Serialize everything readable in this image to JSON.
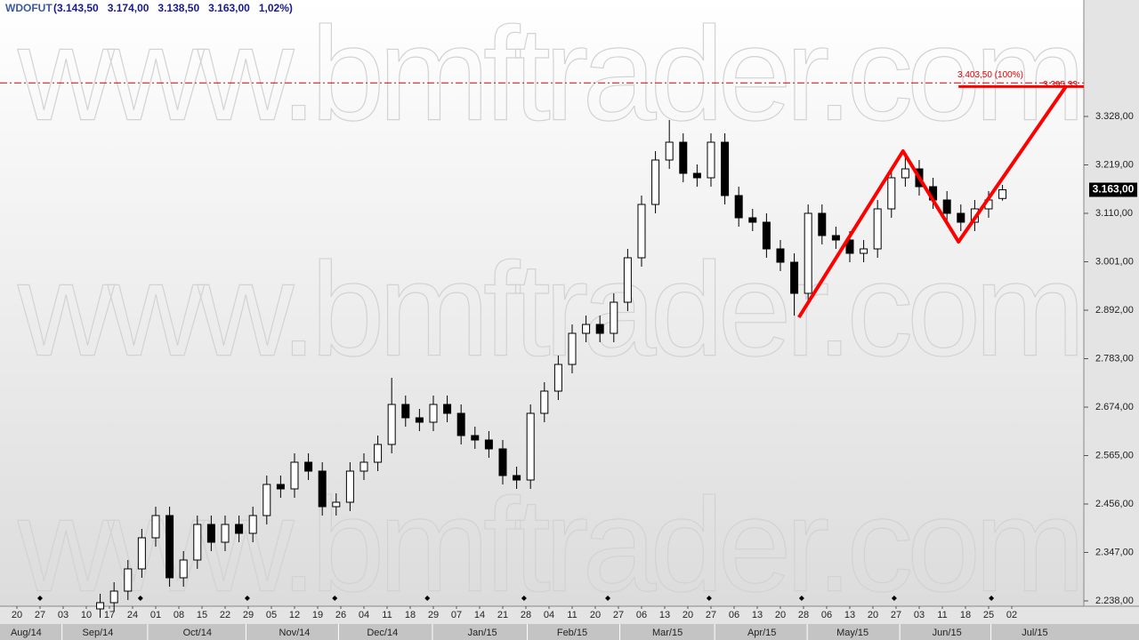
{
  "header": {
    "symbol": "WDOFUT",
    "quote": "(3.143,50   3.174,00   3.138,50   3.163,00   1,02%)"
  },
  "watermark": "www.bmftrader.com",
  "chart_data": {
    "type": "candlestick",
    "up_color": "#ffffff",
    "down_color": "#000000",
    "outline_color": "#000000",
    "x": [
      18,
      21,
      24,
      27,
      30,
      33,
      36,
      39,
      42,
      45,
      48,
      51,
      54,
      57,
      60,
      63,
      66,
      69,
      72,
      75,
      78,
      81,
      84,
      87,
      90,
      93,
      96,
      99,
      102,
      105,
      108,
      111,
      114,
      117,
      120,
      123,
      126,
      129,
      132,
      135,
      138,
      141,
      144,
      147,
      150,
      153,
      156,
      159,
      162,
      165,
      168,
      171,
      174,
      177,
      180,
      183,
      186,
      189,
      192,
      195,
      198,
      201,
      204,
      207,
      210,
      213
    ],
    "open": [
      2220,
      2234,
      2260,
      2310,
      2380,
      2430,
      2290,
      2330,
      2410,
      2370,
      2410,
      2390,
      2430,
      2500,
      2490,
      2550,
      2530,
      2450,
      2460,
      2530,
      2550,
      2590,
      2680,
      2650,
      2640,
      2680,
      2660,
      2610,
      2600,
      2580,
      2520,
      2510,
      2660,
      2710,
      2770,
      2840,
      2860,
      2840,
      2910,
      3010,
      3130,
      3230,
      3270,
      3200,
      3190,
      3270,
      3150,
      3100,
      3090,
      3030,
      3000,
      2930,
      3110,
      3060,
      3050,
      3020,
      3030,
      3120,
      3190,
      3210,
      3170,
      3140,
      3110,
      3090,
      3120,
      3143.5
    ],
    "high": [
      2254,
      2280,
      2330,
      2400,
      2450,
      2450,
      2350,
      2430,
      2430,
      2430,
      2430,
      2450,
      2520,
      2520,
      2570,
      2570,
      2550,
      2480,
      2550,
      2570,
      2610,
      2740,
      2700,
      2670,
      2700,
      2700,
      2680,
      2630,
      2620,
      2600,
      2540,
      2680,
      2730,
      2790,
      2860,
      2880,
      2880,
      2930,
      3030,
      3150,
      3250,
      3320,
      3290,
      3220,
      3290,
      3290,
      3170,
      3120,
      3110,
      3050,
      3020,
      3130,
      3130,
      3080,
      3070,
      3050,
      3140,
      3210,
      3240,
      3230,
      3190,
      3160,
      3130,
      3140,
      3160,
      3174
    ],
    "low": [
      2200,
      2214,
      2240,
      2290,
      2360,
      2270,
      2270,
      2310,
      2350,
      2350,
      2370,
      2370,
      2410,
      2470,
      2470,
      2510,
      2430,
      2430,
      2440,
      2510,
      2530,
      2570,
      2630,
      2620,
      2620,
      2640,
      2590,
      2580,
      2560,
      2500,
      2490,
      2490,
      2640,
      2690,
      2750,
      2820,
      2820,
      2820,
      2890,
      2990,
      3110,
      3210,
      3180,
      3170,
      3170,
      3130,
      3080,
      3070,
      3010,
      2980,
      2880,
      2910,
      3040,
      3030,
      3000,
      3000,
      3010,
      3100,
      3170,
      3150,
      3120,
      3090,
      3070,
      3070,
      3100,
      3138.5
    ],
    "close": [
      2234,
      2260,
      2310,
      2380,
      2430,
      2290,
      2330,
      2410,
      2370,
      2410,
      2390,
      2430,
      2500,
      2490,
      2550,
      2530,
      2450,
      2460,
      2530,
      2550,
      2590,
      2680,
      2650,
      2640,
      2680,
      2660,
      2610,
      2600,
      2580,
      2520,
      2510,
      2660,
      2710,
      2770,
      2840,
      2860,
      2840,
      2910,
      3010,
      3130,
      3230,
      3270,
      3200,
      3190,
      3270,
      3150,
      3100,
      3090,
      3030,
      3000,
      2930,
      3110,
      3060,
      3050,
      3020,
      3030,
      3120,
      3190,
      3210,
      3170,
      3140,
      3110,
      3090,
      3120,
      3140,
      3163
    ],
    "xlim": [
      -3.65,
      230.58
    ],
    "ylim": [
      2210,
      3590
    ],
    "yticks": [
      {
        "value": 3328,
        "label": "3.328,00"
      },
      {
        "value": 3219,
        "label": "3.219,00"
      },
      {
        "value": 3110,
        "label": "3.110,00"
      },
      {
        "value": 3001,
        "label": "3.001,00"
      },
      {
        "value": 2892,
        "label": "2.892,00"
      },
      {
        "value": 2783,
        "label": "2.783,00"
      },
      {
        "value": 2674,
        "label": "2.674,00"
      },
      {
        "value": 2565,
        "label": "2.565,00"
      },
      {
        "value": 2456,
        "label": "2.456,00"
      },
      {
        "value": 2347,
        "label": "2.347,00"
      },
      {
        "value": 2238,
        "label": "2.238,00"
      }
    ],
    "last_price": {
      "value": 3163,
      "label": "3.163,00"
    },
    "xticks": [
      {
        "value": 0,
        "label": "20"
      },
      {
        "value": 5,
        "label": "27"
      },
      {
        "value": 10,
        "label": "03"
      },
      {
        "value": 15,
        "label": "10"
      },
      {
        "value": 20,
        "label": "17"
      },
      {
        "value": 25,
        "label": "24"
      },
      {
        "value": 30,
        "label": "01"
      },
      {
        "value": 35,
        "label": "08"
      },
      {
        "value": 40,
        "label": "15"
      },
      {
        "value": 45,
        "label": "22"
      },
      {
        "value": 50,
        "label": "29"
      },
      {
        "value": 55,
        "label": "05"
      },
      {
        "value": 60,
        "label": "12"
      },
      {
        "value": 65,
        "label": "19"
      },
      {
        "value": 70,
        "label": "26"
      },
      {
        "value": 75,
        "label": "04"
      },
      {
        "value": 80,
        "label": "11"
      },
      {
        "value": 85,
        "label": "18"
      },
      {
        "value": 90,
        "label": "29"
      },
      {
        "value": 95,
        "label": "07"
      },
      {
        "value": 100,
        "label": "14"
      },
      {
        "value": 105,
        "label": "21"
      },
      {
        "value": 110,
        "label": "28"
      },
      {
        "value": 115,
        "label": "04"
      },
      {
        "value": 120,
        "label": "11"
      },
      {
        "value": 125,
        "label": "20"
      },
      {
        "value": 130,
        "label": "27"
      },
      {
        "value": 135,
        "label": "06"
      },
      {
        "value": 140,
        "label": "13"
      },
      {
        "value": 145,
        "label": "20"
      },
      {
        "value": 150,
        "label": "27"
      },
      {
        "value": 155,
        "label": "06"
      },
      {
        "value": 160,
        "label": "13"
      },
      {
        "value": 165,
        "label": "20"
      },
      {
        "value": 170,
        "label": "28"
      },
      {
        "value": 175,
        "label": "06"
      },
      {
        "value": 180,
        "label": "13"
      },
      {
        "value": 185,
        "label": "20"
      },
      {
        "value": 190,
        "label": "27"
      },
      {
        "value": 195,
        "label": "03"
      },
      {
        "value": 200,
        "label": "11"
      },
      {
        "value": 205,
        "label": "18"
      },
      {
        "value": 210,
        "label": "25"
      },
      {
        "value": 215,
        "label": "02"
      }
    ],
    "month_ticks": [
      {
        "value": 2,
        "label": "Aug/14"
      },
      {
        "value": 17.5,
        "label": "Sep/14"
      },
      {
        "value": 39,
        "label": "Oct/14"
      },
      {
        "value": 60,
        "label": "Nov/14"
      },
      {
        "value": 79,
        "label": "Dec/14"
      },
      {
        "value": 100.6,
        "label": "Jan/15"
      },
      {
        "value": 120,
        "label": "Feb/15"
      },
      {
        "value": 140.6,
        "label": "Mar/15"
      },
      {
        "value": 161,
        "label": "Apr/15"
      },
      {
        "value": 180.6,
        "label": "May/15"
      },
      {
        "value": 201,
        "label": "Jun/15"
      },
      {
        "value": 220,
        "label": "Jul/15"
      }
    ],
    "event_markers": [
      5,
      26.7,
      49.8,
      68.7,
      88.7,
      109.6,
      127.7,
      149.6,
      169.6,
      189.6,
      210.6
    ],
    "projection": {
      "color": "#ff0000",
      "x": [
        169,
        191.5,
        203.5,
        226.7
      ],
      "y": [
        2876,
        3250,
        3046,
        3395.33
      ]
    },
    "target_level": {
      "value": 3403.5,
      "label": "3.403,50 (100%)"
    },
    "projection_level": {
      "value": 3395.33,
      "label": "3.395,33",
      "start": 203.5
    }
  }
}
